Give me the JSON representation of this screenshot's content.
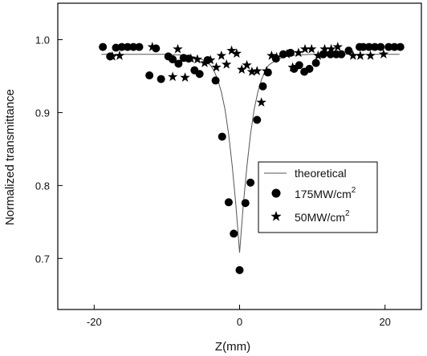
{
  "chart_data": {
    "type": "scatter",
    "title": "",
    "xlabel": "Z(mm)",
    "ylabel": "Normalized transmittance",
    "xlim": [
      -25,
      25
    ],
    "ylim": [
      0.63,
      1.05
    ],
    "xticks": [
      -20,
      0,
      20
    ],
    "xtick_labels": [
      "-20",
      "0",
      "20"
    ],
    "yticks": [
      0.7,
      0.8,
      0.9,
      1.0
    ],
    "ytick_labels": [
      "0.7",
      "0.8",
      "0.9",
      "1.0"
    ],
    "grid": false,
    "legend_position": "center-right",
    "series": [
      {
        "name": "theoretical",
        "style": "line",
        "color": "#555555",
        "x": [
          -19,
          -15,
          -12,
          -10,
          -8,
          -7,
          -6,
          -5,
          -4,
          -3.5,
          -3,
          -2.5,
          -2,
          -1.5,
          -1,
          -0.5,
          0,
          0.5,
          1,
          1.5,
          2,
          2.5,
          3,
          3.5,
          4,
          5,
          6,
          7,
          8,
          10,
          12,
          15,
          19,
          22
        ],
        "y": [
          0.98,
          0.98,
          0.98,
          0.98,
          0.979,
          0.978,
          0.976,
          0.972,
          0.965,
          0.957,
          0.945,
          0.928,
          0.904,
          0.87,
          0.826,
          0.772,
          0.708,
          0.772,
          0.826,
          0.87,
          0.904,
          0.928,
          0.945,
          0.957,
          0.965,
          0.972,
          0.976,
          0.978,
          0.979,
          0.98,
          0.98,
          0.98,
          0.98,
          0.98
        ]
      },
      {
        "name": "175MW/cm",
        "name_sup": "2",
        "style": "circle",
        "color": "#000000",
        "x": [
          -18.8,
          -17.8,
          -17,
          -16.2,
          -15.4,
          -14.6,
          -13.8,
          -12.4,
          -11.5,
          -10.8,
          -9.8,
          -9.2,
          -8.4,
          -7.7,
          -7,
          -6.2,
          -5.5,
          -4.4,
          -3.3,
          -2.4,
          -1.5,
          -0.8,
          0,
          0.8,
          1.5,
          2.4,
          3.2,
          3.9,
          5,
          6,
          7,
          7.5,
          8.2,
          8.9,
          9.6,
          10.5,
          11.5,
          12.5,
          13.3,
          14,
          15,
          16.5,
          17,
          17.8,
          18.6,
          19.4,
          20.5,
          21.3,
          22.1
        ],
        "y": [
          0.99,
          0.977,
          0.989,
          0.99,
          0.99,
          0.99,
          0.99,
          0.951,
          0.988,
          0.946,
          0.977,
          0.973,
          0.967,
          0.975,
          0.974,
          0.958,
          0.953,
          0.972,
          0.944,
          0.867,
          0.777,
          0.734,
          0.684,
          0.776,
          0.804,
          0.89,
          0.936,
          0.955,
          0.974,
          0.98,
          0.982,
          0.96,
          0.965,
          0.956,
          0.96,
          0.968,
          0.98,
          0.98,
          0.98,
          0.98,
          0.985,
          0.99,
          0.99,
          0.99,
          0.99,
          0.99,
          0.99,
          0.99,
          0.99
        ]
      },
      {
        "name": "50MW/cm",
        "name_sup": "2",
        "style": "star",
        "color": "#000000",
        "x": [
          -17.5,
          -16.5,
          -12,
          -9.2,
          -8.5,
          -7.5,
          -6.7,
          -5.8,
          -4.8,
          -4,
          -3.2,
          -2.5,
          -1.8,
          -1.1,
          -0.4,
          0.3,
          1.0,
          1.7,
          2.4,
          3.0,
          3.7,
          4.4,
          5.1,
          6.5,
          7.3,
          8.1,
          9.0,
          9.9,
          10.8,
          11.7,
          12.6,
          13.5,
          15.6,
          16.6,
          18,
          19.8
        ],
        "y": [
          0.977,
          0.978,
          0.99,
          0.949,
          0.987,
          0.948,
          0.974,
          0.973,
          0.968,
          0.972,
          0.962,
          0.978,
          0.966,
          0.985,
          0.981,
          0.959,
          0.965,
          0.956,
          0.957,
          0.914,
          0.957,
          0.978,
          0.976,
          0.98,
          0.962,
          0.982,
          0.987,
          0.987,
          0.978,
          0.987,
          0.987,
          0.99,
          0.978,
          0.978,
          0.978,
          0.98
        ]
      }
    ]
  }
}
